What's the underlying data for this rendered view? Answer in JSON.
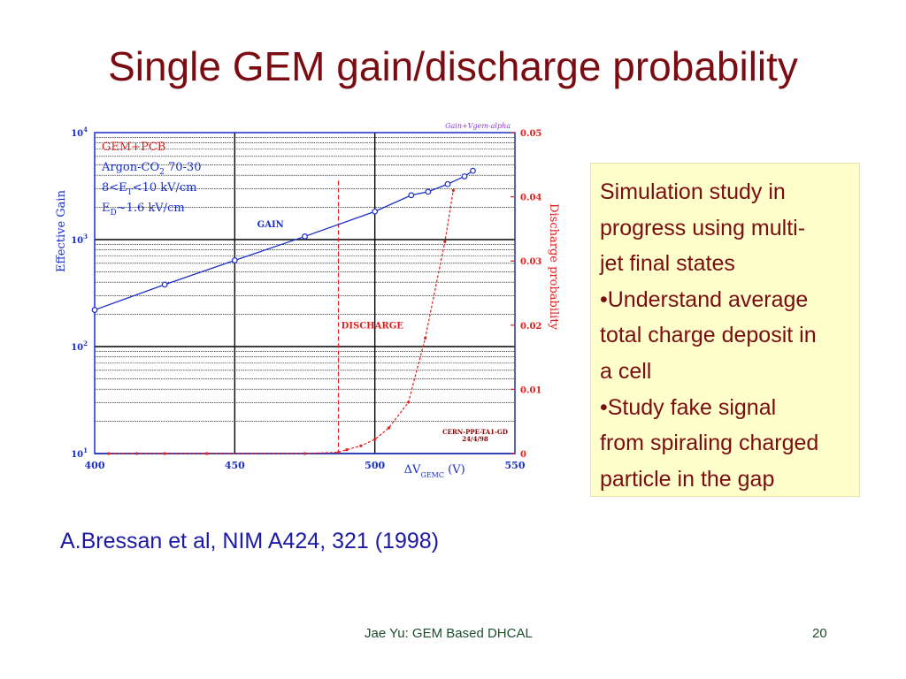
{
  "slide": {
    "title": "Single GEM gain/discharge probability",
    "note_lines": [
      "Simulation study in",
      "progress using multi-",
      "jet final states",
      "•Understand average",
      "total charge deposit in",
      "a cell",
      "•Study fake signal",
      "from spiraling charged",
      "particle in the gap"
    ],
    "citation": "A.Bressan et al, NIM A424, 321 (1998)",
    "footer": "Jae Yu: GEM Based DHCAL",
    "page_number": "20"
  },
  "colors": {
    "title": "#7b0c12",
    "citation": "#1b1aa6",
    "footer": "#1d4e2a",
    "note_background": "#ffffcc",
    "gain_series": "#1a2fc8",
    "discharge_series": "#e02020",
    "legend_text": "#e02020"
  },
  "chart_data": {
    "type": "line",
    "xlabel": "ΔV",
    "xlabel_sub": "GEMC",
    "xlabel_unit": "(V)",
    "xlim": [
      400,
      550
    ],
    "x_ticks": [
      "400",
      "450",
      "500",
      "550"
    ],
    "y_left": {
      "label": "Effective Gain",
      "scale": "log",
      "range": [
        10,
        10000
      ],
      "ticks": [
        {
          "value": 10,
          "base": "10",
          "exp": "1"
        },
        {
          "value": 100,
          "base": "10",
          "exp": "2"
        },
        {
          "value": 1000,
          "base": "10",
          "exp": "3"
        },
        {
          "value": 10000,
          "base": "10",
          "exp": "4"
        }
      ]
    },
    "y_right": {
      "label": "Discharge probability",
      "scale": "linear",
      "range": [
        0,
        0.05
      ],
      "ticks": [
        "0",
        "0.01",
        "0.02",
        "0.03",
        "0.04",
        "0.05"
      ]
    },
    "legend_lines": [
      "GEM+PCB",
      "Argon-CO",
      "2",
      " 70-30",
      "8<E",
      "T",
      "<10 kV/cm",
      "E",
      "D",
      "~1.6 kV/cm"
    ],
    "top_note": "Gain+Vgem-alpha",
    "stamp_lines": [
      "CERN-PPE-TA1-GD",
      "24/4/98"
    ],
    "series": [
      {
        "name": "GAIN",
        "axis": "left",
        "x": [
          400,
          425,
          450,
          475,
          500,
          513,
          519,
          526,
          532,
          535
        ],
        "y": [
          220,
          380,
          640,
          1070,
          1830,
          2600,
          2800,
          3300,
          3900,
          4400
        ]
      },
      {
        "name": "DISCHARGE",
        "axis": "right",
        "x": [
          405,
          415,
          425,
          440,
          475,
          487,
          490,
          495,
          500,
          505,
          512,
          518,
          525,
          528
        ],
        "y": [
          0,
          0,
          0,
          0,
          0,
          0.0002,
          0.0006,
          0.0012,
          0.0022,
          0.004,
          0.008,
          0.018,
          0.033,
          0.041
        ]
      }
    ],
    "annotations": [
      {
        "text": "GAIN",
        "x": 458,
        "y": 1300,
        "axis": "left"
      },
      {
        "text": "DISCHARGE",
        "x": 488,
        "y": 0.0195,
        "axis": "right"
      }
    ],
    "discharge_threshold_x": 487
  }
}
